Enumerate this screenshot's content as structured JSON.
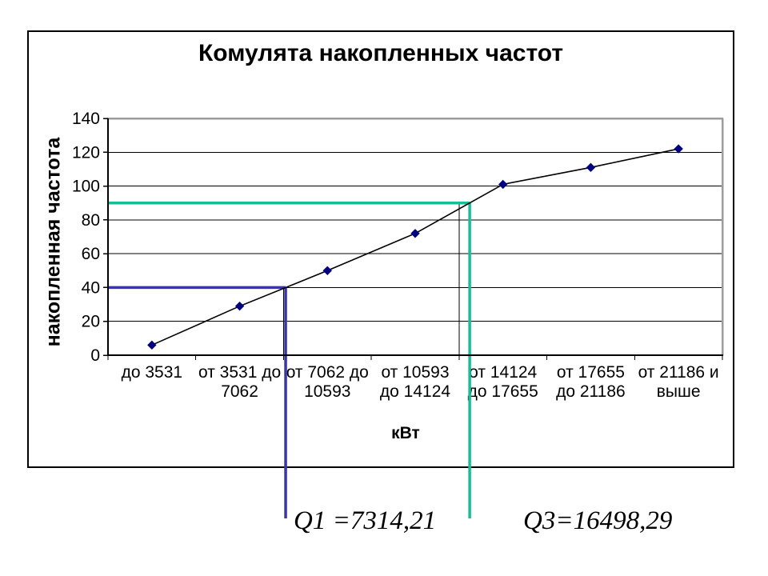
{
  "chart": {
    "title": "Комулята накопленных частот",
    "y_axis_title": "накопленная частота",
    "x_axis_title": "кВт",
    "annotations": {
      "q1": "Q1 =7314,21",
      "q3": "Q3=16498,29"
    }
  },
  "chart_data": {
    "type": "line",
    "title": "Комулята накопленных частот",
    "xlabel": "кВт",
    "ylabel": "накопленная частота",
    "categories": [
      "до 3531",
      "от 3531 до 7062",
      "от 7062 до 10593",
      "от 10593 до 14124",
      "от 14124 до 17655",
      "от 17655 до 21186",
      "от 21186 и выше"
    ],
    "category_label_lines": [
      [
        "до 3531"
      ],
      [
        "от 3531 до",
        "7062"
      ],
      [
        "от 7062 до",
        "10593"
      ],
      [
        "от 10593",
        "до 14124"
      ],
      [
        "от 14124",
        "до 17655"
      ],
      [
        "от 17655",
        "до 21186"
      ],
      [
        "от 21186 и",
        "выше"
      ]
    ],
    "values": [
      6,
      29,
      50,
      72,
      101,
      111,
      122
    ],
    "ylim": [
      0,
      140
    ],
    "yticks": [
      0,
      20,
      40,
      60,
      80,
      100,
      120,
      140
    ],
    "grid": true,
    "legend": "none",
    "line_color": "#000000",
    "marker_color": "#000080",
    "plot_border_color": "#9C9C9C",
    "guides": [
      {
        "id": "q1",
        "y_value": 40,
        "color": "#3936AB",
        "label": "Q1 =7314,21"
      },
      {
        "id": "q3",
        "y_value": 90,
        "color": "#17BE96",
        "label": "Q3=16498,29"
      }
    ]
  }
}
